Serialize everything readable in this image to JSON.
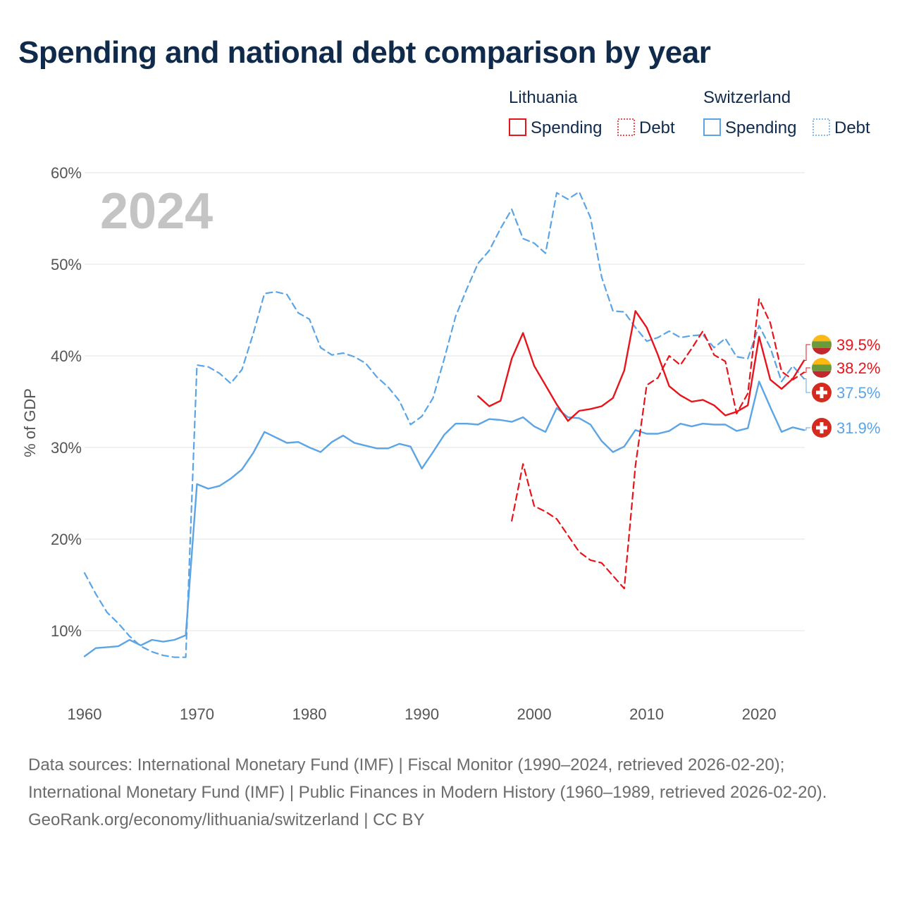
{
  "title": "Spending and national debt comparison by year",
  "chart_data": {
    "type": "line",
    "year_label": "2024",
    "ylabel": "% of GDP",
    "xlim": [
      1960,
      2024
    ],
    "ylim": [
      0,
      60
    ],
    "x_ticks": [
      1960,
      1970,
      1980,
      1990,
      2000,
      2010,
      2020
    ],
    "y_ticks": [
      {
        "value": 10,
        "label": "10%"
      },
      {
        "value": 20,
        "label": "20%"
      },
      {
        "value": 30,
        "label": "30%"
      },
      {
        "value": 40,
        "label": "40%"
      },
      {
        "value": 50,
        "label": "50%"
      },
      {
        "value": 60,
        "label": "60%"
      }
    ],
    "legend": {
      "groups": [
        {
          "country": "Lithuania",
          "items": [
            {
              "label": "Spending",
              "color": "#e8141b",
              "dashed": false
            },
            {
              "label": "Debt",
              "color": "#e8141b",
              "dashed": true
            }
          ]
        },
        {
          "country": "Switzerland",
          "items": [
            {
              "label": "Spending",
              "color": "#5ba4e5",
              "dashed": false
            },
            {
              "label": "Debt",
              "color": "#5ba4e5",
              "dashed": true
            }
          ]
        }
      ]
    },
    "series": [
      {
        "name": "Switzerland Spending",
        "color": "#5ba4e5",
        "dashed": false,
        "start_year": 1960,
        "values": [
          7.2,
          8.1,
          8.2,
          8.3,
          9.0,
          8.4,
          9.0,
          8.8,
          9.0,
          9.5,
          26.0,
          25.5,
          25.8,
          26.6,
          27.6,
          29.4,
          31.7,
          31.1,
          30.5,
          30.6,
          30.0,
          29.5,
          30.6,
          31.3,
          30.5,
          30.2,
          29.9,
          29.9,
          30.4,
          30.1,
          27.7,
          29.5,
          31.4,
          32.6,
          32.6,
          32.5,
          33.1,
          33.0,
          32.8,
          33.3,
          32.3,
          31.7,
          34.3,
          33.3,
          33.2,
          32.5,
          30.7,
          29.5,
          30.1,
          31.9,
          31.5,
          31.5,
          31.8,
          32.6,
          32.3,
          32.6,
          32.5,
          32.5,
          31.8,
          32.1,
          37.2,
          34.4,
          31.7,
          32.2,
          31.9
        ]
      },
      {
        "name": "Switzerland Debt",
        "color": "#5ba4e5",
        "dashed": true,
        "start_year": 1960,
        "values": [
          16.3,
          14.0,
          12.0,
          10.8,
          9.4,
          8.3,
          7.7,
          7.3,
          7.1,
          7.1,
          39.0,
          38.8,
          38.1,
          37.0,
          38.5,
          42.4,
          46.8,
          47.0,
          46.7,
          44.7,
          44.0,
          40.9,
          40.1,
          40.3,
          39.9,
          39.2,
          37.7,
          36.6,
          35.1,
          32.5,
          33.4,
          35.4,
          39.7,
          44.3,
          47.3,
          50.1,
          51.5,
          53.9,
          56.0,
          52.8,
          52.3,
          51.2,
          57.8,
          57.1,
          57.9,
          55.1,
          48.6,
          44.9,
          44.8,
          43.1,
          41.6,
          42.0,
          42.7,
          42.0,
          42.2,
          42.3,
          40.9,
          41.9,
          39.9,
          39.7,
          43.3,
          40.9,
          37.2,
          38.9,
          37.5
        ]
      },
      {
        "name": "Lithuania Spending",
        "color": "#e8141b",
        "dashed": false,
        "start_year": 1995,
        "values": [
          35.6,
          34.5,
          35.1,
          39.7,
          42.5,
          38.9,
          36.8,
          34.7,
          32.9,
          34.0,
          34.2,
          34.5,
          35.4,
          38.4,
          44.9,
          43.1,
          40.1,
          36.7,
          35.7,
          35.0,
          35.2,
          34.6,
          33.5,
          33.9,
          34.6,
          42.1,
          37.4,
          36.4,
          37.5,
          39.5
        ]
      },
      {
        "name": "Lithuania Debt",
        "color": "#e8141b",
        "dashed": true,
        "start_year": 1998,
        "values": [
          22.0,
          28.2,
          23.6,
          23.0,
          22.2,
          20.4,
          18.6,
          17.7,
          17.4,
          16.0,
          14.6,
          28.0,
          36.8,
          37.6,
          40.0,
          39.0,
          40.8,
          42.7,
          40.1,
          39.4,
          33.7,
          35.9,
          46.2,
          43.6,
          38.3,
          37.4,
          38.2
        ]
      }
    ],
    "end_labels": [
      {
        "text": "39.5%",
        "value": 39.5,
        "color": "#e8141b",
        "flag": "lithuania"
      },
      {
        "text": "38.2%",
        "value": 38.2,
        "color": "#e8141b",
        "flag": "lithuania"
      },
      {
        "text": "37.5%",
        "value": 37.5,
        "color": "#5ba4e5",
        "flag": "switzerland"
      },
      {
        "text": "31.9%",
        "value": 31.9,
        "color": "#5ba4e5",
        "flag": "switzerland"
      }
    ]
  },
  "footer": {
    "line1": "Data sources: International Monetary Fund (IMF) | Fiscal Monitor (1990–2024, retrieved 2026-02-20); International Monetary Fund (IMF) | Public Finances in Modern History (1960–1989, retrieved 2026-02-20).",
    "line2": "GeoRank.org/economy/lithuania/switzerland | CC BY"
  }
}
